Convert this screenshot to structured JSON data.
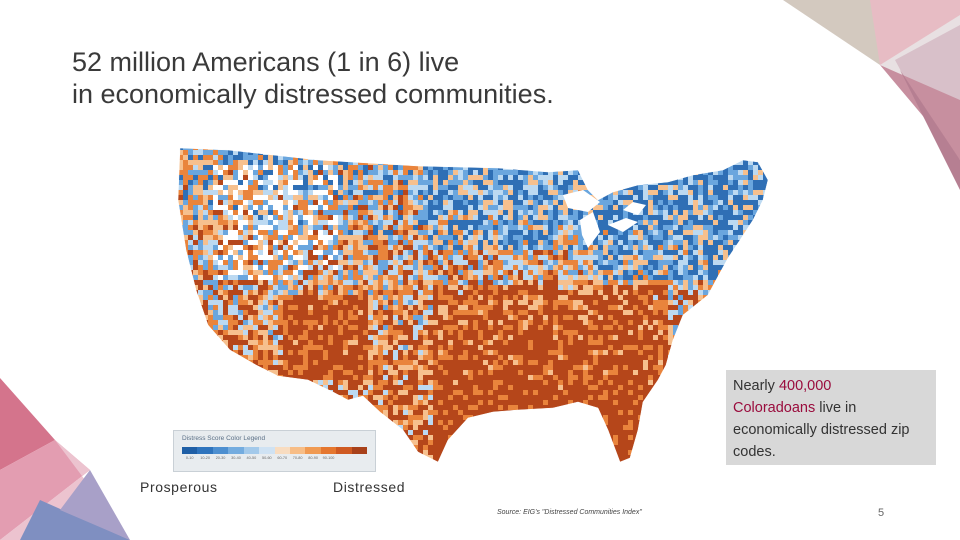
{
  "slide": {
    "title_line1": "52 million Americans (1 in 6) live",
    "title_line2": "in economically distressed communities.",
    "page_number": "5"
  },
  "map": {
    "subject": "Distressed Communities Index map of U.S. zip codes",
    "colors": {
      "prosperous_dark": "#2f6fb5",
      "prosperous_mid": "#6aa6de",
      "prosperous_light": "#bcd9f1",
      "distressed_light": "#f6c08e",
      "distressed_mid": "#e9843c",
      "distressed_dark": "#b5461a",
      "no_data": "#ffffff"
    }
  },
  "legend": {
    "title": "Distress Score Color Legend",
    "swatch_colors": [
      "#1f5fa6",
      "#2f74bd",
      "#4d8fd0",
      "#74acdf",
      "#a3c9ea",
      "#cfe2f3",
      "#f8dcc0",
      "#f7bd86",
      "#f09a52",
      "#e5772f",
      "#cf5a22",
      "#a8411a"
    ],
    "ticks": [
      "0-10",
      "10-20",
      "20-30",
      "30-40",
      "40-50",
      "50-60",
      "60-70",
      "70-80",
      "80-90",
      "90-100",
      "",
      ""
    ],
    "low_label": "Prosperous",
    "high_label": "Distressed"
  },
  "callout": {
    "text_pre": "Nearly ",
    "highlight1": "400,000",
    "highlight2": "Coloradoans",
    "text_post": " live in economically distressed zip codes."
  },
  "source": "Source: EIG's \"Distressed Communities Index\"",
  "colors": {
    "accent": "#9a0c3d",
    "deco_pink": "#d9788f",
    "deco_mauve": "#b58898",
    "deco_light_pink": "#ecc3cf",
    "deco_blue": "#7f8fc1",
    "deco_tan": "#d3c9bf"
  }
}
